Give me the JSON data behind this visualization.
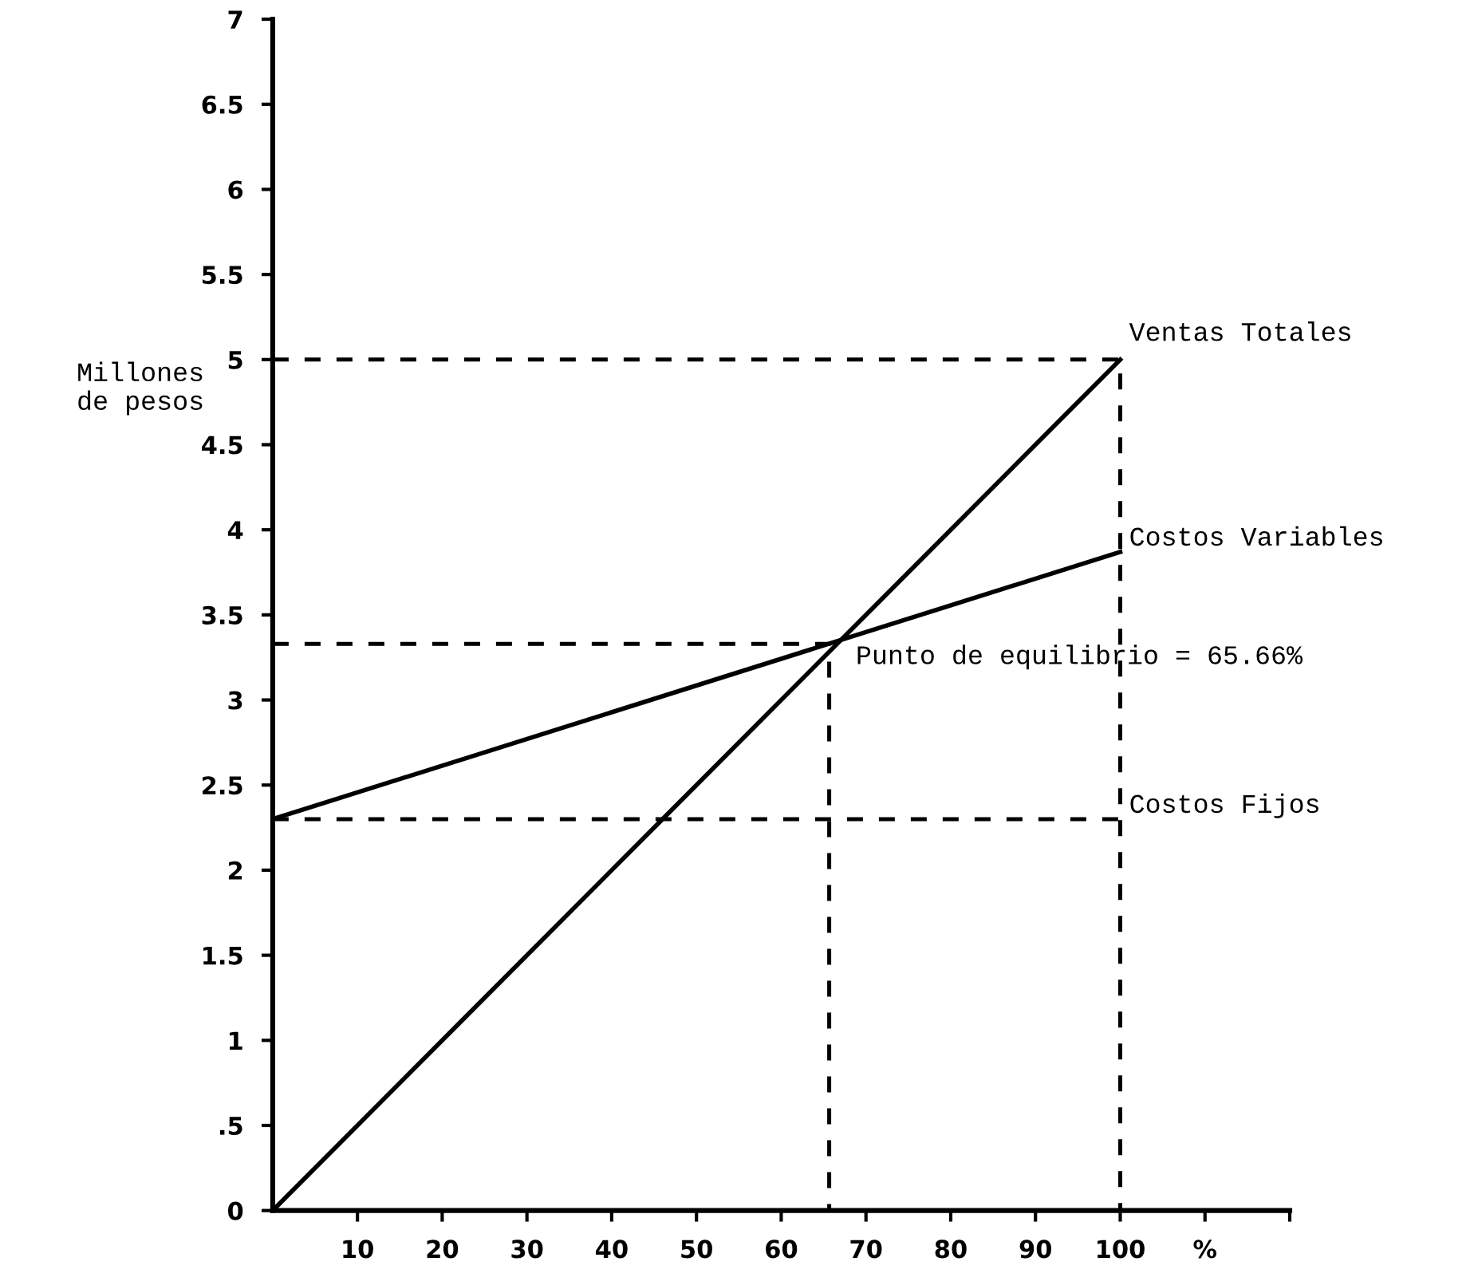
{
  "chart_data": {
    "type": "line",
    "ylabel": "Millones\nde pesos",
    "xlim": [
      0,
      120
    ],
    "ylim": [
      0,
      7
    ],
    "xticks": [
      10,
      20,
      30,
      40,
      50,
      60,
      70,
      80,
      90,
      100,
      {
        "value": 110,
        "label": "%"
      },
      {
        "value": 120,
        "label": null
      }
    ],
    "yticks": [
      0,
      {
        "value": 0.5,
        "label": ".5"
      },
      1,
      1.5,
      2,
      2.5,
      3,
      3.5,
      4,
      4.5,
      5,
      5.5,
      6,
      6.5,
      7
    ],
    "grid": false,
    "legend": false,
    "marker": "none",
    "series": [
      {
        "name": "Ventas Totales",
        "color": "#000000",
        "line_style": "solid",
        "x": [
          0,
          100
        ],
        "values": [
          0,
          5
        ]
      },
      {
        "name": "Costos Variables",
        "color": "#000000",
        "line_style": "solid",
        "x": [
          0,
          100
        ],
        "values": [
          2.3,
          3.87
        ]
      },
      {
        "name": "Costos Fijos",
        "color": "#000000",
        "line_style": "dashed",
        "x": [
          0,
          100
        ],
        "values": [
          2.3,
          2.3
        ]
      },
      {
        "color": "#000000",
        "line_style": "dashed",
        "x": [
          0,
          100,
          100
        ],
        "values": [
          5,
          5,
          0
        ]
      },
      {
        "color": "#000000",
        "line_style": "dashed",
        "x": [
          0,
          65.66,
          65.66
        ],
        "values": [
          3.33,
          3.33,
          0
        ]
      }
    ],
    "annotations": [
      {
        "text": "Punto de equilibrio = 65.66%",
        "x": 65.66,
        "y": 3.33
      }
    ]
  }
}
